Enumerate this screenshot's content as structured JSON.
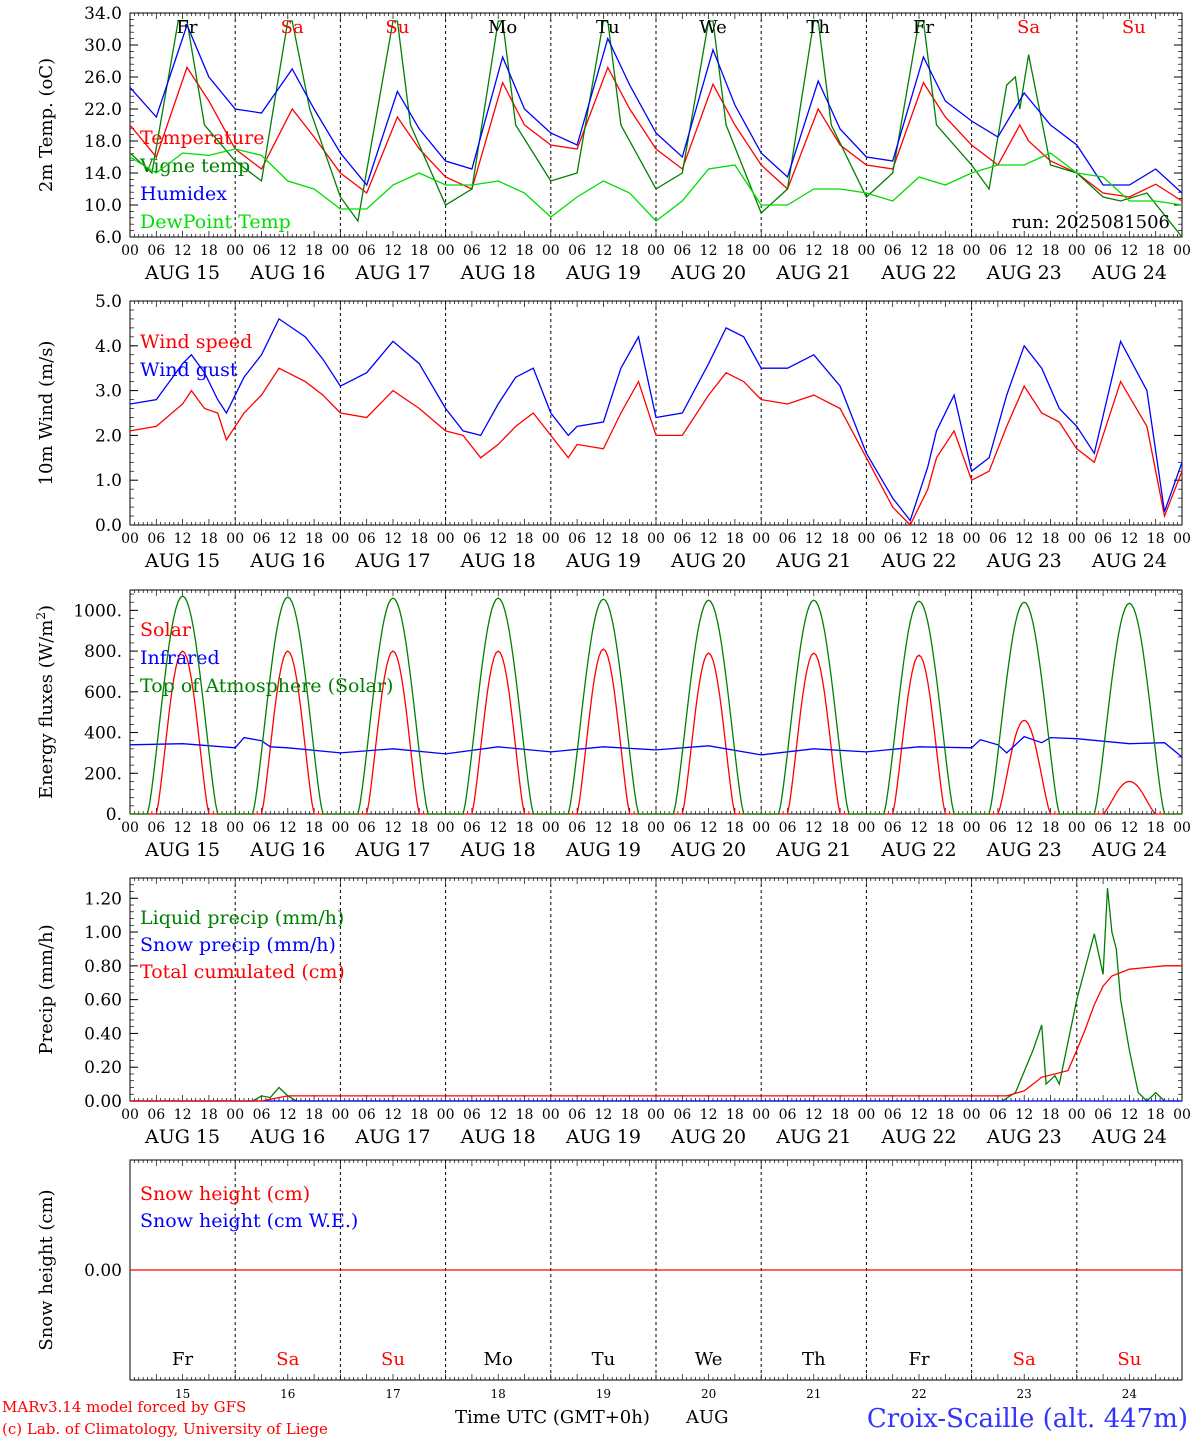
{
  "footer": {
    "credit_line1": "MARv3.14 model forced by GFS",
    "credit_line2": "(c) Lab. of Climatology, University of Liege",
    "xlabel": "Time UTC (GMT+0h)",
    "month": "AUG",
    "station": "Croix-Scaille (alt. 447m)"
  },
  "run_label": "run: 2025081506",
  "colors": {
    "red": "#ff0000",
    "green": "#008000",
    "blue": "#0000ff",
    "lime": "#00dd00",
    "black": "#000000"
  },
  "chart_data": {
    "type": "line",
    "x_axis": {
      "unit": "hours since AUG 15 00 UTC",
      "range": [
        0,
        240
      ],
      "hour_ticks": [
        "00",
        "06",
        "12",
        "18"
      ],
      "date_labels": [
        "AUG 15",
        "AUG 16",
        "AUG 17",
        "AUG 18",
        "AUG 19",
        "AUG 20",
        "AUG 21",
        "AUG 22",
        "AUG 23",
        "AUG 24"
      ],
      "day_names": [
        "Fr",
        "Sa",
        "Su",
        "Mo",
        "Tu",
        "We",
        "Th",
        "Fr",
        "Sa",
        "Su"
      ],
      "weekend": [
        false,
        true,
        true,
        false,
        false,
        false,
        false,
        false,
        true,
        true
      ],
      "day_numbers": [
        "15",
        "16",
        "17",
        "18",
        "19",
        "20",
        "21",
        "22",
        "23",
        "24"
      ]
    },
    "panels": [
      {
        "id": "temperature",
        "ylabel": "2m Temp. (oC)",
        "ylim": [
          6,
          34
        ],
        "yticks": [
          "34.0",
          "30.0",
          "26.0",
          "22.0",
          "18.0",
          "14.0",
          "10.0",
          "6.0"
        ],
        "series": [
          {
            "name": "Temperature",
            "color": "#ff0000",
            "x": [
              0,
              6,
              13,
              18,
              24,
              30,
              37,
              42,
              48,
              54,
              61,
              66,
              72,
              78,
              85,
              90,
              96,
              102,
              109,
              114,
              120,
              126,
              133,
              138,
              144,
              150,
              157,
              162,
              168,
              174,
              181,
              186,
              192,
              198,
              203,
              205,
              210,
              216,
              222,
              228,
              234,
              240
            ],
            "y": [
              20,
              16,
              27.2,
              23,
              17,
              14.5,
              22,
              18.5,
              14,
              11.5,
              21,
              17,
              13.5,
              12,
              25.3,
              20,
              17.5,
              17,
              27.2,
              22,
              17,
              14.5,
              25.1,
              20,
              15,
              12,
              22,
              17.5,
              15,
              14.5,
              25.3,
              21,
              17.5,
              15,
              20,
              18,
              15.5,
              14,
              11.5,
              11,
              12.6,
              10.5
            ]
          },
          {
            "name": "Vigne temp",
            "color": "#008000",
            "x": [
              0,
              5,
              11,
              13,
              17,
              24,
              30,
              36,
              37,
              41,
              48,
              52,
              60,
              61,
              64,
              72,
              78,
              84,
              85,
              88,
              96,
              102,
              108,
              109,
              112,
              120,
              126,
              132,
              133,
              136,
              144,
              150,
              156,
              157,
              160,
              168,
              174,
              180,
              181,
              184,
              192,
              196,
              200,
              202,
              203,
              205,
              210,
              216,
              222,
              226,
              232,
              240
            ],
            "y": [
              16.5,
              14,
              33,
              33,
              20,
              15.5,
              13,
              33,
              33,
              22,
              11,
              8,
              33,
              33,
              20,
              10,
              12,
              33,
              33,
              20,
              13,
              14,
              33,
              33,
              20,
              12,
              14,
              33,
              33,
              20,
              9,
              12,
              33,
              33,
              20,
              11,
              14,
              33,
              33,
              20,
              15,
              12,
              25,
              26,
              22,
              28.8,
              15,
              14,
              11,
              10.5,
              11.5,
              6
            ]
          },
          {
            "name": "Humidex",
            "color": "#0000ff",
            "x": [
              0,
              6,
              13,
              18,
              24,
              30,
              37,
              42,
              48,
              54,
              61,
              66,
              72,
              78,
              85,
              90,
              96,
              102,
              109,
              114,
              120,
              126,
              133,
              138,
              144,
              150,
              157,
              162,
              168,
              174,
              181,
              186,
              192,
              198,
              204,
              210,
              216,
              222,
              228,
              234,
              240
            ],
            "y": [
              24.7,
              21,
              32.5,
              26,
              22,
              21.5,
              27,
              22,
              16.5,
              12.5,
              24.2,
              19.5,
              15.5,
              14.5,
              28.5,
              22,
              19,
              17.5,
              30.8,
              25,
              19,
              16,
              29.4,
              22.5,
              16.5,
              13.5,
              25.5,
              19.5,
              16,
              15.5,
              28.5,
              23,
              20.5,
              18.5,
              24,
              20,
              17.5,
              12.5,
              12.5,
              14.5,
              11.5
            ]
          },
          {
            "name": "DewPoint Temp",
            "color": "#00dd00",
            "x": [
              0,
              6,
              12,
              18,
              24,
              30,
              36,
              42,
              48,
              54,
              60,
              66,
              72,
              78,
              84,
              90,
              96,
              102,
              108,
              114,
              120,
              126,
              132,
              138,
              144,
              150,
              156,
              162,
              168,
              174,
              180,
              186,
              192,
              198,
              204,
              210,
              216,
              222,
              228,
              234,
              240
            ],
            "y": [
              16,
              14,
              16.5,
              16.2,
              17,
              16.2,
              13,
              12,
              9.5,
              9.5,
              12.5,
              14,
              12.5,
              12.5,
              13,
              11.5,
              8.5,
              11,
              13,
              11.5,
              8,
              10.5,
              14.5,
              15,
              10,
              10,
              12,
              12,
              11.5,
              10.5,
              13.5,
              12.5,
              14,
              15,
              15,
              16.5,
              14,
              13.5,
              10.5,
              10.5,
              10
            ]
          }
        ]
      },
      {
        "id": "wind",
        "ylabel": "10m Wind (m/s)",
        "ylim": [
          0,
          5
        ],
        "yticks": [
          "5.0",
          "4.0",
          "3.0",
          "2.0",
          "1.0",
          "0.0"
        ],
        "series": [
          {
            "name": "Wind speed",
            "color": "#ff0000",
            "x": [
              0,
              6,
              12,
              14,
              17,
              20,
              22,
              26,
              30,
              34,
              40,
              44,
              48,
              54,
              60,
              66,
              72,
              76,
              80,
              84,
              88,
              92,
              96,
              100,
              102,
              108,
              112,
              116,
              120,
              126,
              132,
              136,
              140,
              144,
              150,
              156,
              162,
              168,
              174,
              178,
              182,
              184,
              188,
              192,
              196,
              200,
              204,
              208,
              212,
              216,
              220,
              226,
              232,
              236,
              240
            ],
            "y": [
              2.1,
              2.2,
              2.7,
              3.0,
              2.6,
              2.5,
              1.9,
              2.5,
              2.9,
              3.5,
              3.2,
              2.9,
              2.5,
              2.4,
              3.0,
              2.6,
              2.1,
              2.0,
              1.5,
              1.8,
              2.2,
              2.5,
              2.0,
              1.5,
              1.8,
              1.7,
              2.5,
              3.2,
              2.0,
              2.0,
              2.9,
              3.4,
              3.2,
              2.8,
              2.7,
              2.9,
              2.6,
              1.5,
              0.4,
              0.0,
              0.8,
              1.5,
              2.1,
              1.0,
              1.2,
              2.2,
              3.1,
              2.5,
              2.3,
              1.7,
              1.4,
              3.2,
              2.2,
              0.2,
              1.2
            ]
          },
          {
            "name": "Wind gust",
            "color": "#0000ff",
            "x": [
              0,
              6,
              12,
              14,
              17,
              20,
              22,
              26,
              30,
              34,
              40,
              44,
              48,
              54,
              60,
              66,
              72,
              76,
              80,
              84,
              88,
              92,
              96,
              100,
              102,
              108,
              112,
              116,
              120,
              126,
              132,
              136,
              140,
              144,
              150,
              156,
              162,
              168,
              174,
              178,
              182,
              184,
              188,
              192,
              196,
              200,
              204,
              208,
              212,
              216,
              220,
              226,
              232,
              236,
              240
            ],
            "y": [
              2.7,
              2.8,
              3.6,
              3.8,
              3.4,
              2.8,
              2.5,
              3.3,
              3.8,
              4.6,
              4.2,
              3.7,
              3.1,
              3.4,
              4.1,
              3.6,
              2.6,
              2.1,
              2.0,
              2.7,
              3.3,
              3.5,
              2.5,
              2.0,
              2.2,
              2.3,
              3.5,
              4.2,
              2.4,
              2.5,
              3.6,
              4.4,
              4.2,
              3.5,
              3.5,
              3.8,
              3.1,
              1.6,
              0.6,
              0.1,
              1.3,
              2.1,
              2.9,
              1.2,
              1.5,
              2.9,
              4.0,
              3.5,
              2.6,
              2.2,
              1.6,
              4.1,
              3.0,
              0.3,
              1.4
            ]
          }
        ]
      },
      {
        "id": "energy",
        "ylabel": "Energy fluxes (W/m2)",
        "ylim": [
          0,
          1100
        ],
        "yticks": [
          "1000.",
          "800.",
          "600.",
          "400.",
          "200.",
          "0."
        ],
        "series": [
          {
            "name": "Solar",
            "color": "#ff0000",
            "daily_peaks": [
              800,
              800,
              800,
              800,
              810,
              790,
              790,
              780,
              460,
              160
            ]
          },
          {
            "name": "Infrared",
            "color": "#0000ff",
            "x": [
              0,
              12,
              24,
              26,
              30,
              32,
              36,
              48,
              60,
              72,
              84,
              96,
              108,
              120,
              132,
              144,
              156,
              168,
              180,
              192,
              194,
              198,
              200,
              204,
              208,
              210,
              216,
              228,
              236,
              240
            ],
            "y": [
              340,
              345,
              325,
              375,
              360,
              330,
              325,
              300,
              320,
              295,
              330,
              305,
              330,
              315,
              335,
              290,
              320,
              305,
              330,
              325,
              365,
              340,
              300,
              380,
              350,
              375,
              370,
              345,
              350,
              280
            ]
          },
          {
            "name": "Top of Atmosphere (Solar)",
            "color": "#008000",
            "daily_peaks": [
              1070,
              1065,
              1060,
              1060,
              1055,
              1050,
              1050,
              1045,
              1040,
              1035
            ]
          }
        ]
      },
      {
        "id": "precip",
        "ylabel": "Precip (mm/h)",
        "ylim": [
          0,
          1.32
        ],
        "yticks": [
          "1.20",
          "1.00",
          "0.80",
          "0.60",
          "0.40",
          "0.20",
          "0.00"
        ],
        "series": [
          {
            "name": "Liquid precip (mm/h)",
            "color": "#008000",
            "x": [
              0,
              28,
              30,
              32,
              34,
              36,
              38,
              40,
              199,
              202,
              206,
              208,
              209,
              211,
              212,
              216,
              220,
              222,
              223,
              224,
              225,
              226,
              228,
              230,
              232,
              234,
              236,
              240
            ],
            "y": [
              0,
              0,
              0.03,
              0.02,
              0.08,
              0.03,
              0,
              0,
              0,
              0.05,
              0.3,
              0.45,
              0.1,
              0.15,
              0.1,
              0.6,
              0.99,
              0.75,
              1.26,
              1.0,
              0.9,
              0.6,
              0.3,
              0.05,
              0,
              0.05,
              0,
              0
            ]
          },
          {
            "name": "Snow precip (mm/h)",
            "color": "#0000ff",
            "x": [
              0,
              240
            ],
            "y": [
              0,
              0
            ]
          },
          {
            "name": "Total cumulated (cm)",
            "color": "#ff0000",
            "x": [
              0,
              30,
              36,
              40,
              200,
              204,
              206,
              208,
              214,
              216,
              218,
              220,
              222,
              224,
              226,
              228,
              232,
              236,
              240
            ],
            "y": [
              0,
              0,
              0.03,
              0.03,
              0.03,
              0.06,
              0.1,
              0.14,
              0.18,
              0.3,
              0.43,
              0.57,
              0.68,
              0.74,
              0.76,
              0.78,
              0.79,
              0.8,
              0.8
            ]
          }
        ]
      },
      {
        "id": "snow",
        "ylabel": "Snow height (cm)",
        "ylim": [
          -1,
          1
        ],
        "yticks": [
          "0.00"
        ],
        "series": [
          {
            "name": "Snow height (cm)",
            "color": "#ff0000",
            "x": [
              0,
              240
            ],
            "y": [
              0,
              0
            ]
          },
          {
            "name": "Snow height (cm W.E.)",
            "color": "#0000ff",
            "x": [],
            "y": []
          }
        ]
      }
    ]
  }
}
